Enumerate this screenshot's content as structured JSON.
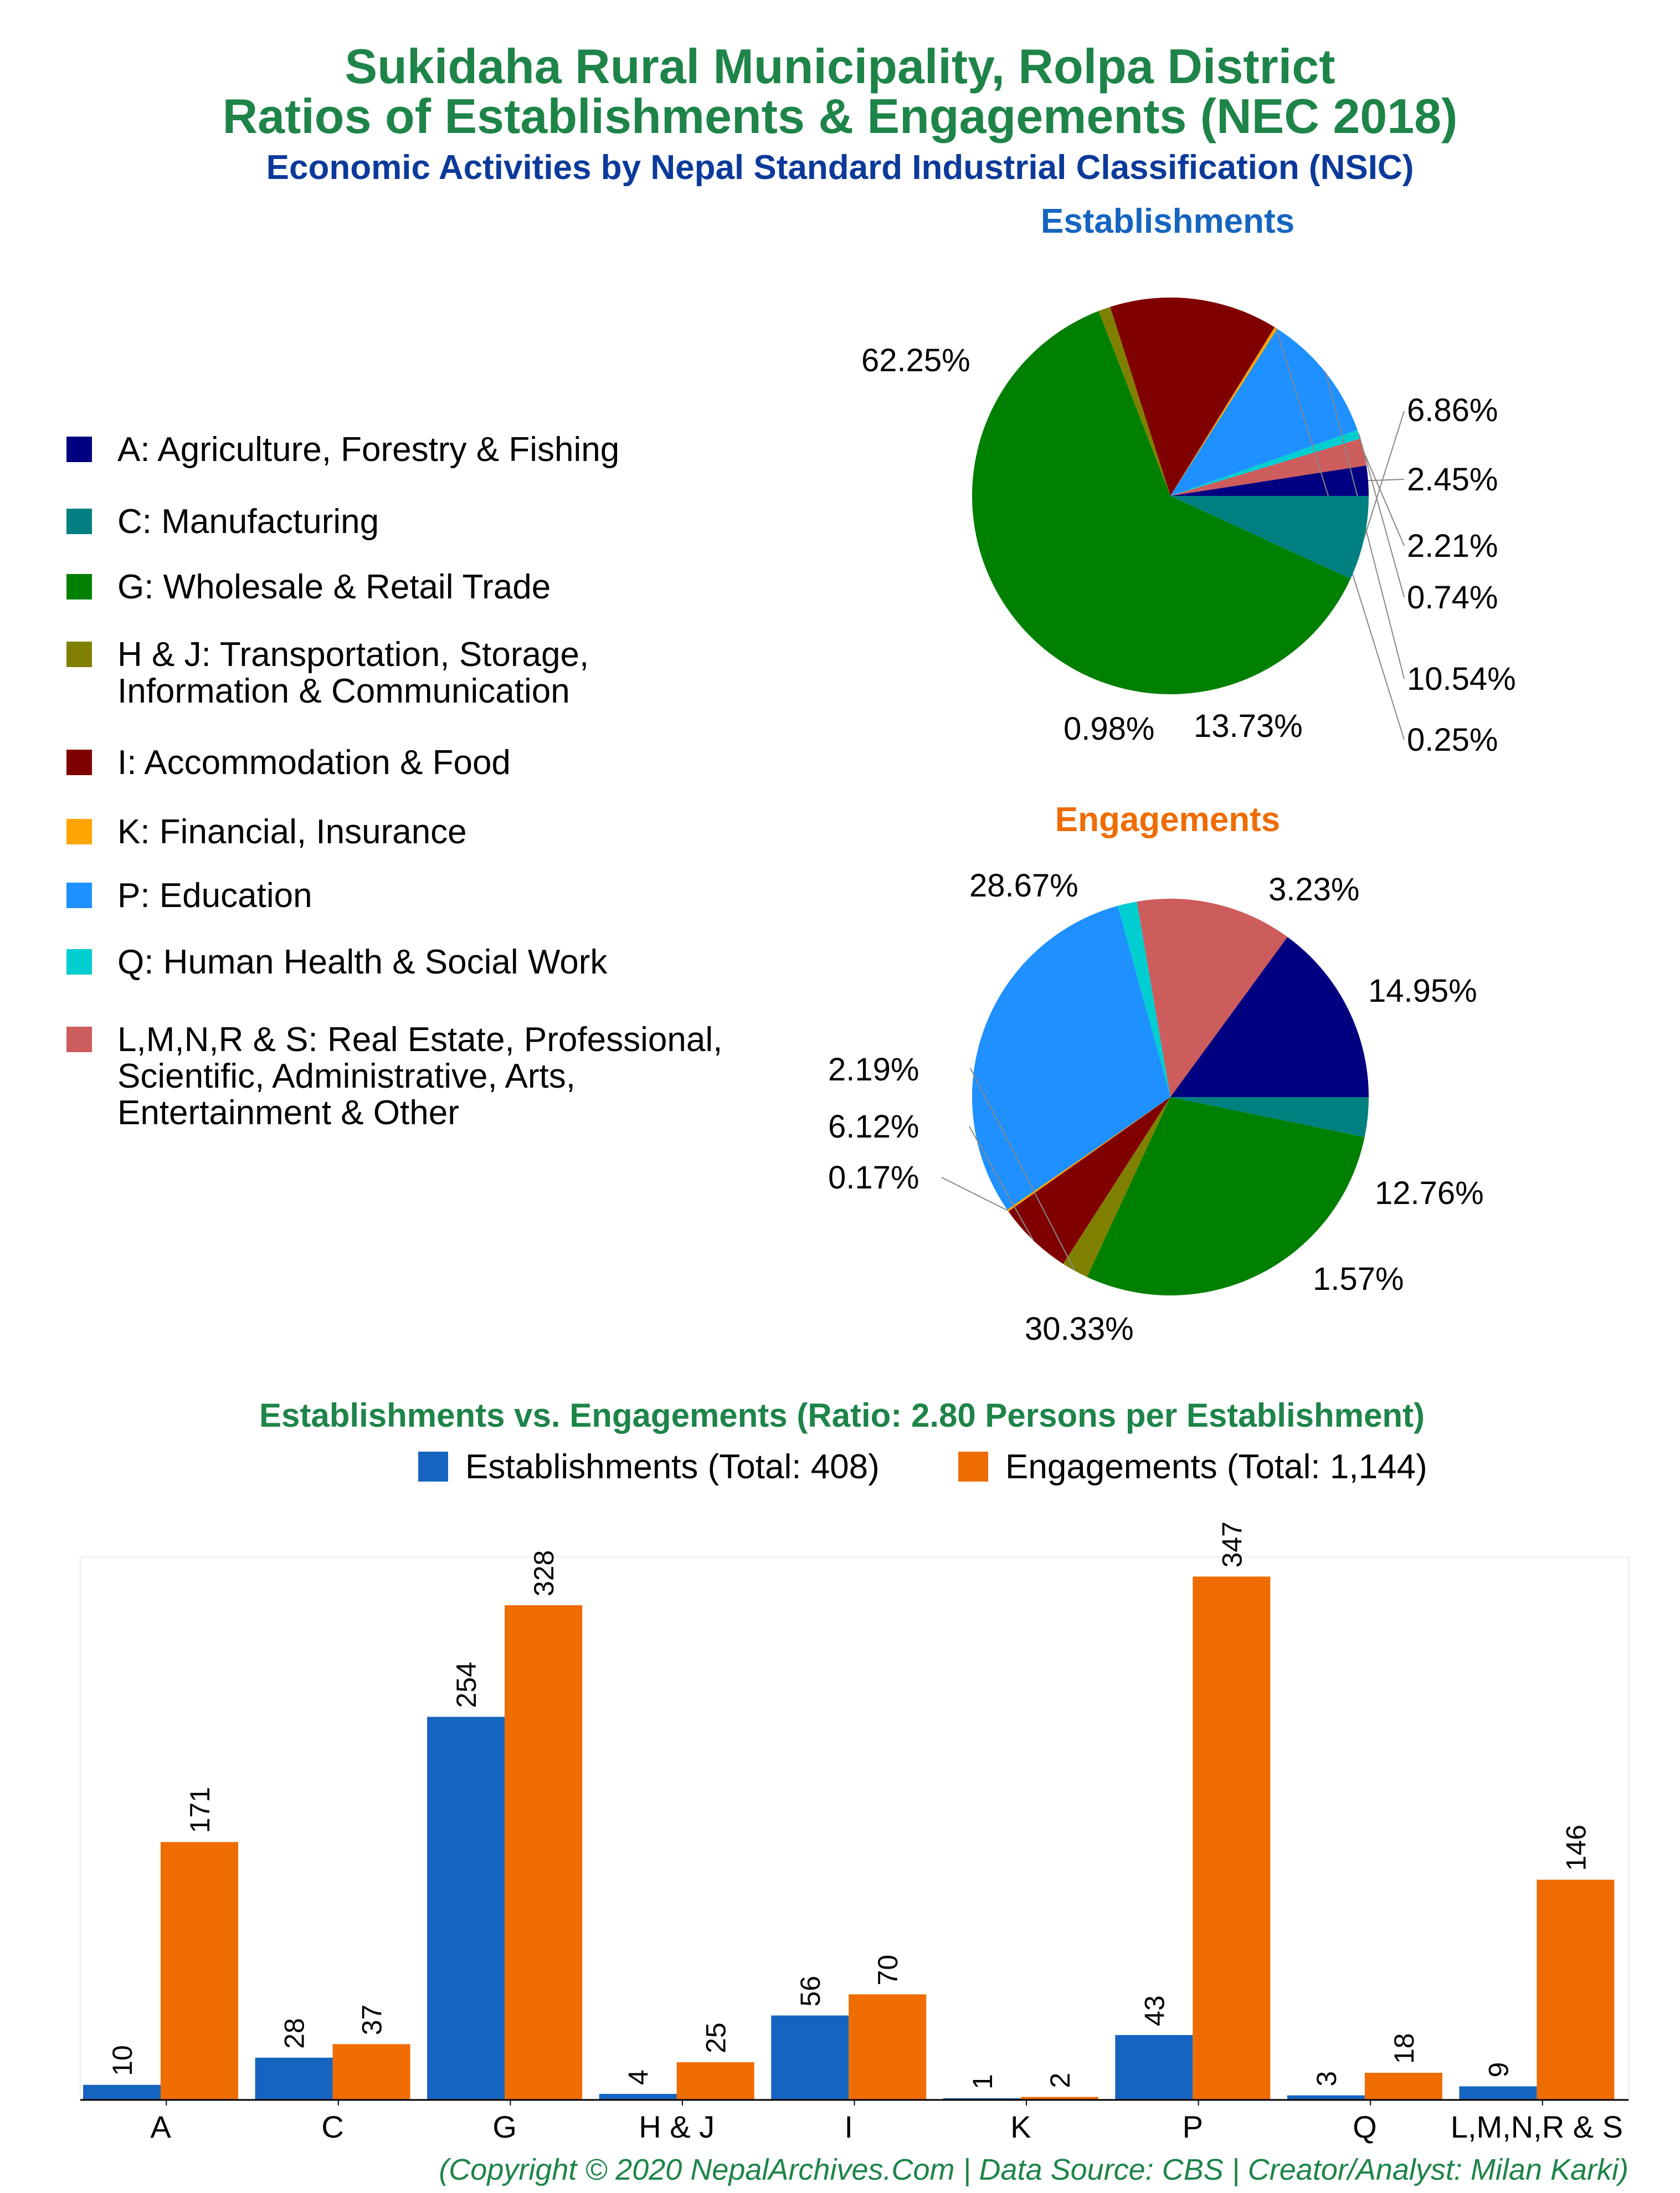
{
  "header": {
    "title_line1": "Sukidaha Rural Municipality, Rolpa District",
    "title_line2": "Ratios of Establishments & Engagements (NEC 2018)",
    "subtitle": "Economic Activities by Nepal Standard Industrial Classification (NSIC)"
  },
  "footer": "(Copyright © 2020 NepalArchives.Com | Data Source: CBS | Creator/Analyst: Milan Karki)",
  "colors": {
    "title_green": "#1e8449",
    "subtitle_blue": "#0b3a9a",
    "establishments_title": "#1565c0",
    "engagements_title": "#ef6c00",
    "bar_establishments": "#1565c0",
    "bar_engagements": "#ef6c00"
  },
  "legend": [
    {
      "label": "A: Agriculture, Forestry & Fishing",
      "color": "#000080"
    },
    {
      "label": "C: Manufacturing",
      "color": "#008080"
    },
    {
      "label": "G: Wholesale & Retail Trade",
      "color": "#008000"
    },
    {
      "label": "H & J: Transportation, Storage,\nInformation & Communication",
      "color": "#808000"
    },
    {
      "label": "I: Accommodation & Food",
      "color": "#800000"
    },
    {
      "label": "K: Financial, Insurance",
      "color": "#ffa500"
    },
    {
      "label": "P: Education",
      "color": "#1e90ff"
    },
    {
      "label": "Q: Human Health & Social Work",
      "color": "#00ced1"
    },
    {
      "label": "L,M,N,R & S: Real Estate, Professional,\nScientific, Administrative, Arts,\nEntertainment & Other",
      "color": "#cd5c5c"
    }
  ],
  "chart_data": [
    {
      "type": "pie",
      "title": "Establishments",
      "slices": [
        {
          "category": "A",
          "value": 2.45,
          "label": "2.45%"
        },
        {
          "category": "L,M,N,R & S",
          "value": 2.21,
          "label": "2.21%"
        },
        {
          "category": "Q",
          "value": 0.74,
          "label": "0.74%"
        },
        {
          "category": "P",
          "value": 10.54,
          "label": "10.54%"
        },
        {
          "category": "K",
          "value": 0.25,
          "label": "0.25%"
        },
        {
          "category": "I",
          "value": 13.73,
          "label": "13.73%"
        },
        {
          "category": "H & J",
          "value": 0.98,
          "label": "0.98%"
        },
        {
          "category": "G",
          "value": 62.25,
          "label": "62.25%"
        },
        {
          "category": "C",
          "value": 6.86,
          "label": "6.86%"
        }
      ]
    },
    {
      "type": "pie",
      "title": "Engagements",
      "slices": [
        {
          "category": "A",
          "value": 14.95,
          "label": "14.95%"
        },
        {
          "category": "L,M,N,R & S",
          "value": 12.76,
          "label": "12.76%"
        },
        {
          "category": "Q",
          "value": 1.57,
          "label": "1.57%"
        },
        {
          "category": "P",
          "value": 30.33,
          "label": "30.33%"
        },
        {
          "category": "K",
          "value": 0.17,
          "label": "0.17%"
        },
        {
          "category": "I",
          "value": 6.12,
          "label": "6.12%"
        },
        {
          "category": "H & J",
          "value": 2.19,
          "label": "2.19%"
        },
        {
          "category": "G",
          "value": 28.67,
          "label": "28.67%"
        },
        {
          "category": "C",
          "value": 3.23,
          "label": "3.23%"
        }
      ]
    },
    {
      "type": "bar",
      "title": "Establishments vs. Engagements (Ratio: 2.80 Persons per Establishment)",
      "categories": [
        "A",
        "C",
        "G",
        "H & J",
        "I",
        "K",
        "P",
        "Q",
        "L,M,N,R & S"
      ],
      "series": [
        {
          "name": "Establishments (Total: 408)",
          "values": [
            10,
            28,
            254,
            4,
            56,
            1,
            43,
            3,
            9
          ]
        },
        {
          "name": "Engagements (Total: 1,144)",
          "values": [
            171,
            37,
            328,
            25,
            70,
            2,
            347,
            18,
            146
          ]
        }
      ],
      "ylim": [
        0,
        360
      ],
      "grid": false,
      "legend_position": "top"
    }
  ]
}
